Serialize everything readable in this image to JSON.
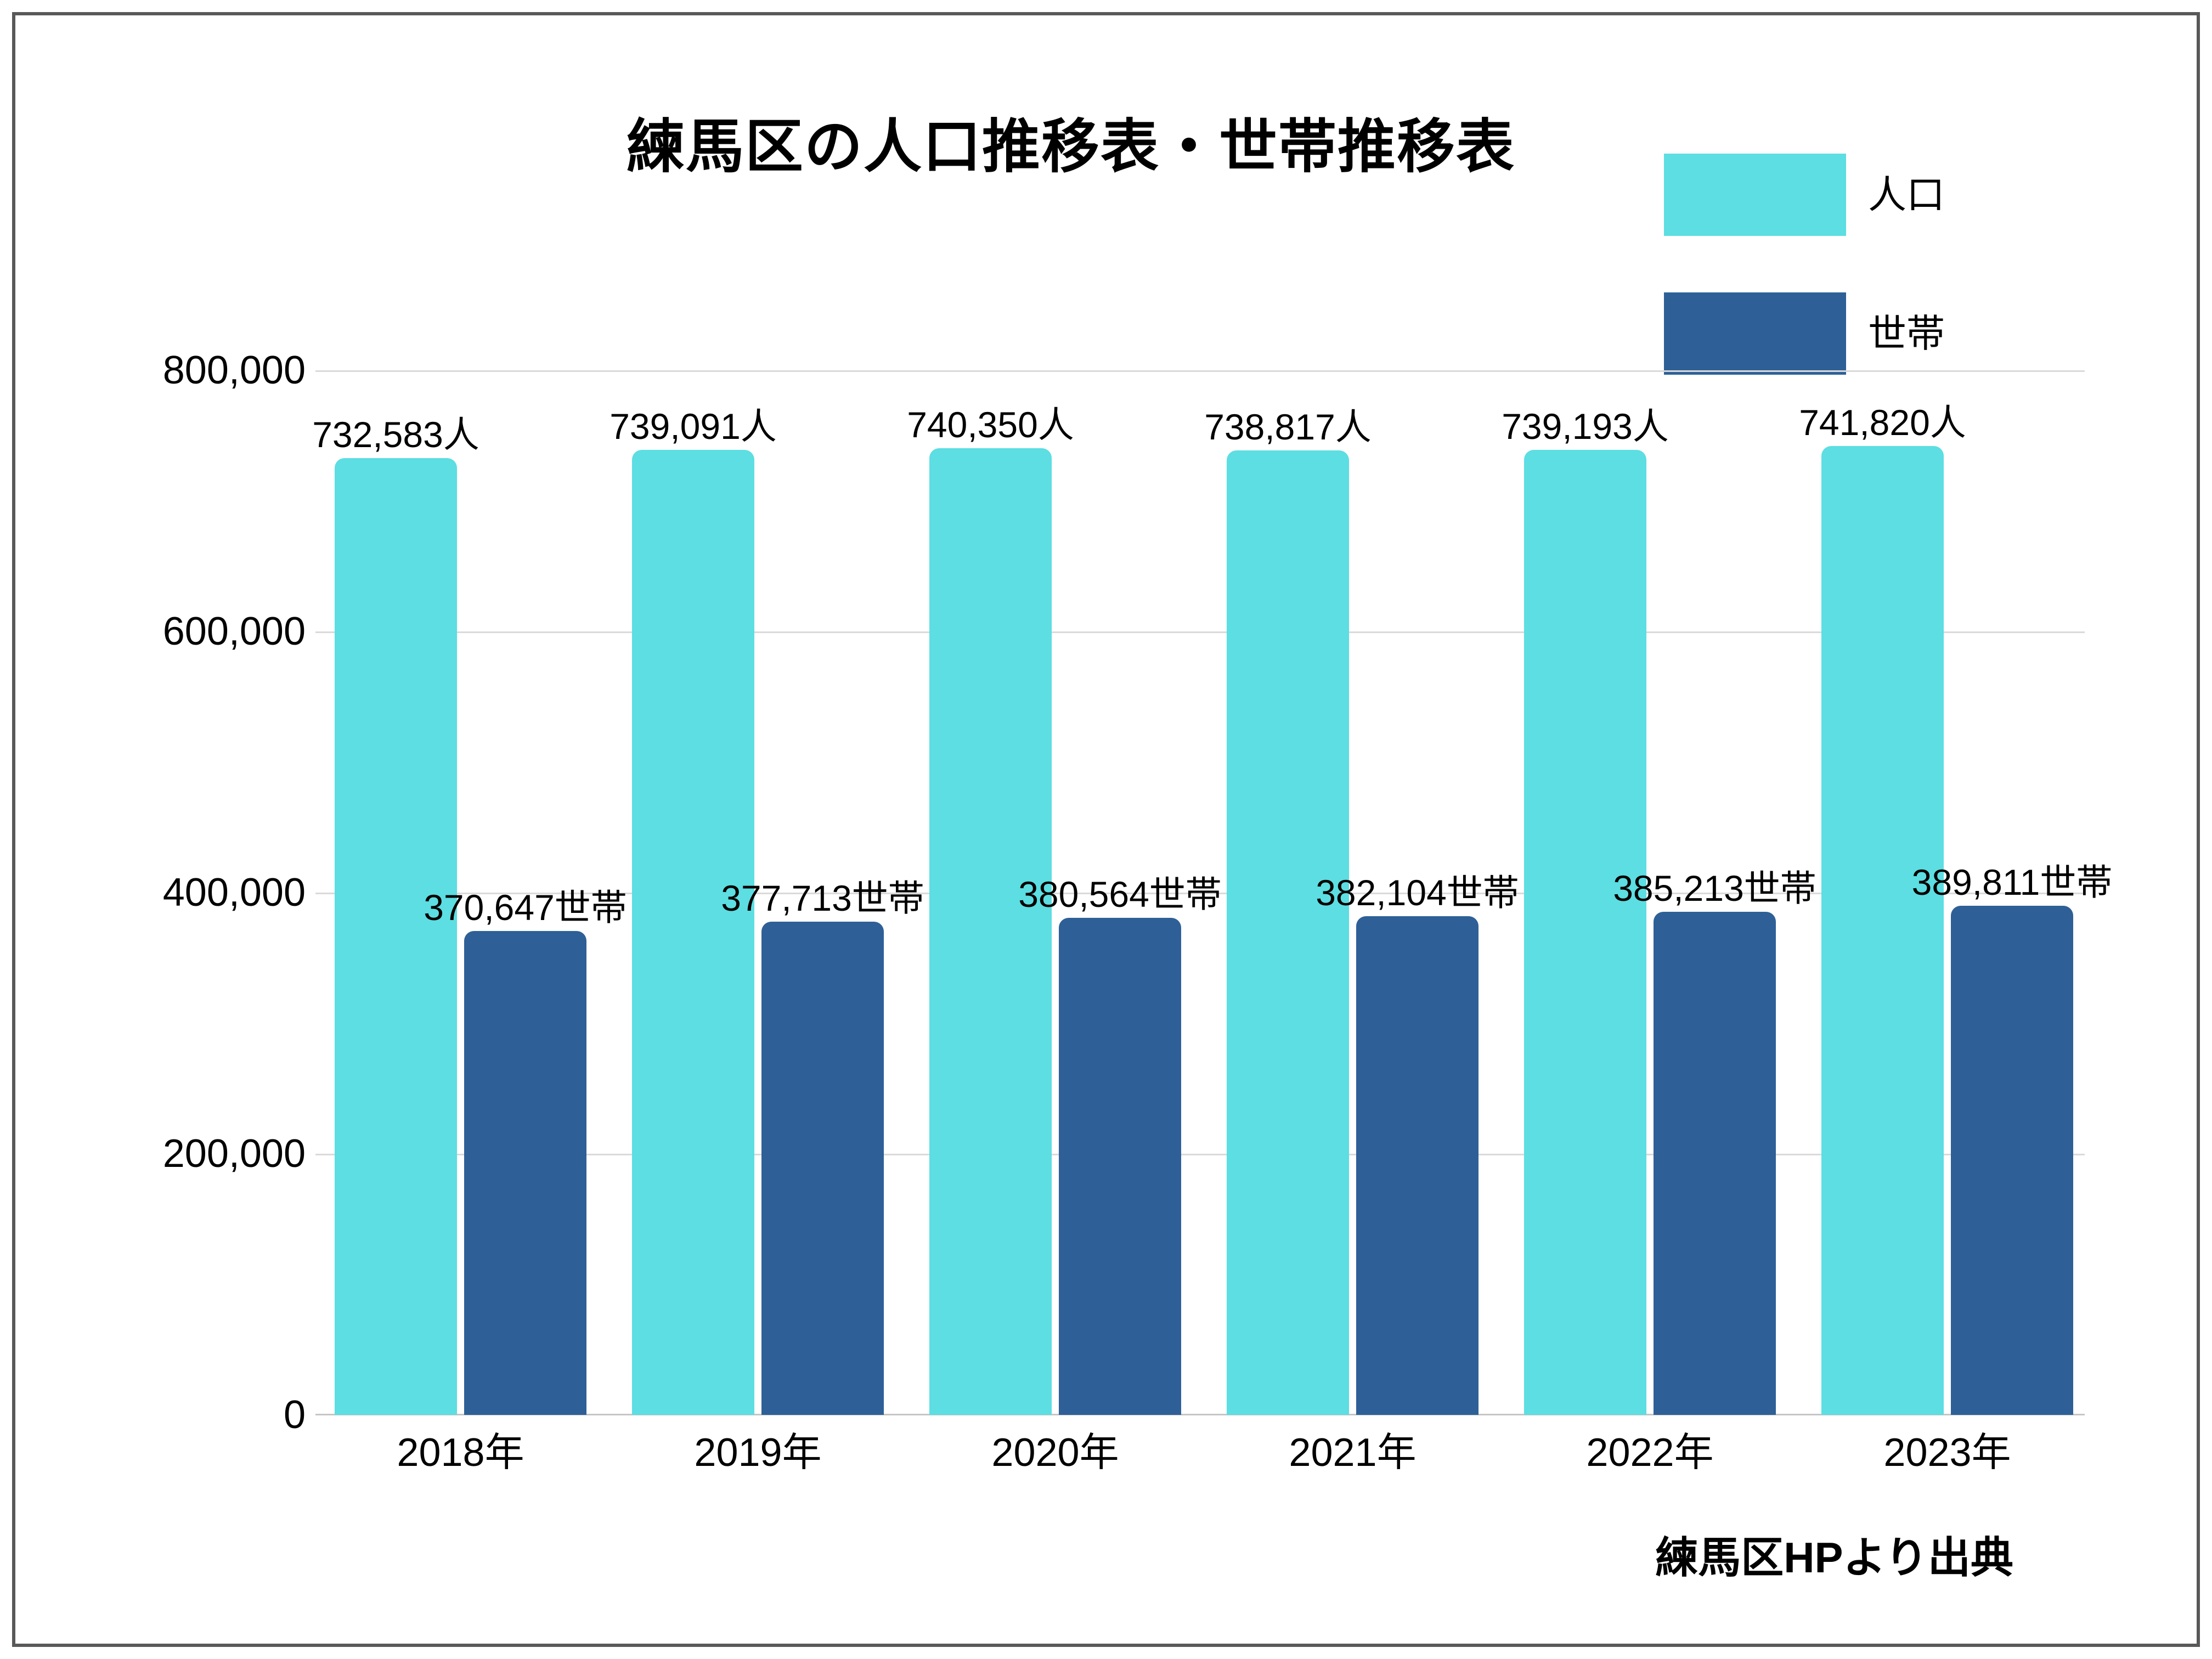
{
  "title": "練馬区の人口推移表・世帯推移表",
  "source_note": "練馬区HPより出典",
  "colors": {
    "population": "#5CDEE2",
    "household": "#2E6097",
    "gridline": "#DADADA",
    "frame_border": "#595959"
  },
  "chart_data": {
    "type": "bar",
    "title": "練馬区の人口推移表・世帯推移表",
    "categories": [
      "2018年",
      "2019年",
      "2020年",
      "2021年",
      "2022年",
      "2023年"
    ],
    "series": [
      {
        "name": "人口",
        "color": "#5CDEE2",
        "values": [
          732583,
          739091,
          740350,
          738817,
          739193,
          741820
        ],
        "data_labels": [
          "732,583人",
          "739,091人",
          "740,350人",
          "738,817人",
          "739,193人",
          "741,820人"
        ]
      },
      {
        "name": "世帯",
        "color": "#2E6097",
        "values": [
          370647,
          377713,
          380564,
          382104,
          385213,
          389811
        ],
        "data_labels": [
          "370,647世帯",
          "377,713世帯",
          "380,564世帯",
          "382,104世帯",
          "385,213世帯",
          "389,811世帯"
        ]
      }
    ],
    "y_axis": {
      "min": 0,
      "max": 800000,
      "tick_step": 200000,
      "tick_labels_top_to_bottom": [
        "800,000",
        "600,000",
        "400,000",
        "200,000",
        "0"
      ]
    },
    "grid": true,
    "legend_position": "top-right",
    "annotation": "練馬区HPより出典"
  }
}
